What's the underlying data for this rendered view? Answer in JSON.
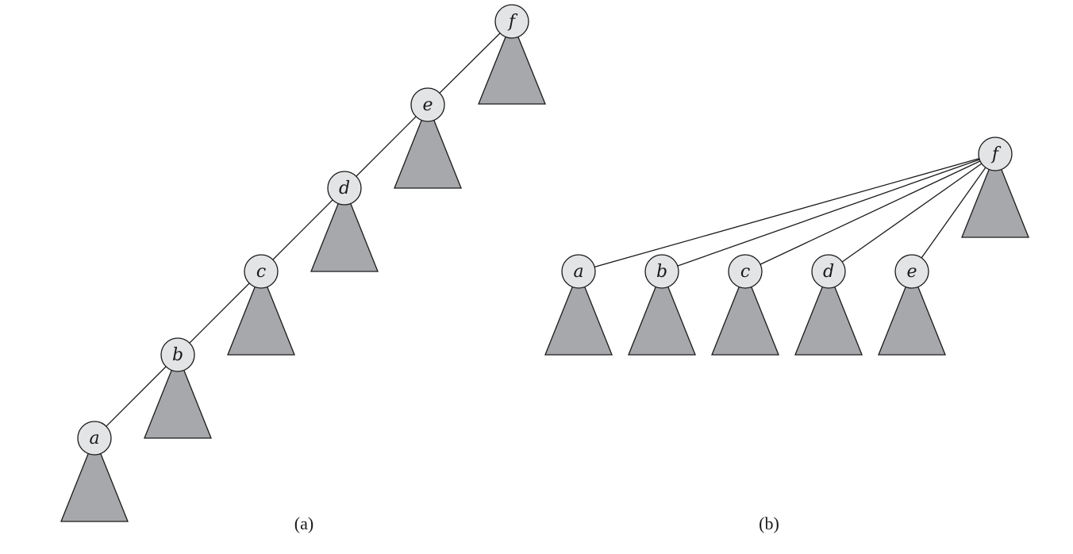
{
  "diagrams": [
    {
      "caption": "(a)",
      "structure": "chain",
      "nodes": [
        "f",
        "e",
        "d",
        "c",
        "b",
        "a"
      ],
      "edges": [
        [
          "f",
          "e"
        ],
        [
          "e",
          "d"
        ],
        [
          "d",
          "c"
        ],
        [
          "c",
          "b"
        ],
        [
          "b",
          "a"
        ]
      ],
      "colors": {
        "node_fill": "#e3e4e5",
        "subtree_fill": "#a7a8ab",
        "stroke": "#1a1a1a"
      }
    },
    {
      "caption": "(b)",
      "structure": "star",
      "root": "f",
      "nodes": [
        "a",
        "b",
        "c",
        "d",
        "e"
      ],
      "edges": [
        [
          "f",
          "a"
        ],
        [
          "f",
          "b"
        ],
        [
          "f",
          "c"
        ],
        [
          "f",
          "d"
        ],
        [
          "f",
          "e"
        ]
      ],
      "colors": {
        "node_fill": "#e3e4e5",
        "subtree_fill": "#a7a8ab",
        "stroke": "#1a1a1a"
      }
    }
  ]
}
